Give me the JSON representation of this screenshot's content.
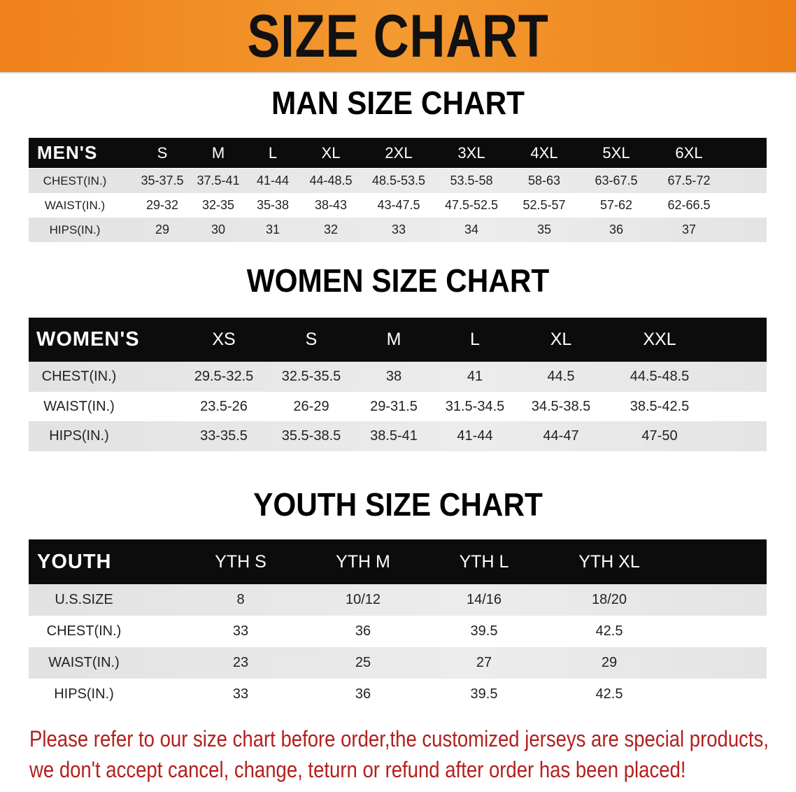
{
  "banner": {
    "title": "SIZE CHART",
    "color": "#f08a22"
  },
  "men": {
    "title": "MAN SIZE CHART",
    "header": [
      "MEN'S",
      "S",
      "M",
      "L",
      "XL",
      "2XL",
      "3XL",
      "4XL",
      "5XL",
      "6XL"
    ],
    "rows": [
      [
        "CHEST(IN.)",
        "35-37.5",
        "37.5-41",
        "41-44",
        "44-48.5",
        "48.5-53.5",
        "53.5-58",
        "58-63",
        "63-67.5",
        "67.5-72"
      ],
      [
        "WAIST(IN.)",
        "29-32",
        "32-35",
        "35-38",
        "38-43",
        "43-47.5",
        "47.5-52.5",
        "52.5-57",
        "57-62",
        "62-66.5"
      ],
      [
        "HIPS(IN.)",
        "29",
        "30",
        "31",
        "32",
        "33",
        "34",
        "35",
        "36",
        "37"
      ]
    ]
  },
  "women": {
    "title": "WOMEN SIZE CHART",
    "header": [
      "WOMEN'S",
      "XS",
      "S",
      "M",
      "L",
      "XL",
      "XXL"
    ],
    "rows": [
      [
        "CHEST(IN.)",
        "29.5-32.5",
        "32.5-35.5",
        "38",
        "41",
        "44.5",
        "44.5-48.5"
      ],
      [
        "WAIST(IN.)",
        "23.5-26",
        "26-29",
        "29-31.5",
        "31.5-34.5",
        "34.5-38.5",
        "38.5-42.5"
      ],
      [
        "HIPS(IN.)",
        "33-35.5",
        "35.5-38.5",
        "38.5-41",
        "41-44",
        "44-47",
        "47-50"
      ]
    ]
  },
  "youth": {
    "title": "YOUTH SIZE CHART",
    "header": [
      "YOUTH",
      "YTH S",
      "YTH M",
      "YTH L",
      "YTH XL"
    ],
    "rows": [
      [
        "U.S.SIZE",
        "8",
        "10/12",
        "14/16",
        "18/20"
      ],
      [
        "CHEST(IN.)",
        "33",
        "36",
        "39.5",
        "42.5"
      ],
      [
        "WAIST(IN.)",
        "23",
        "25",
        "27",
        "29"
      ],
      [
        "HIPS(IN.)",
        "33",
        "36",
        "39.5",
        "42.5"
      ]
    ]
  },
  "note": {
    "line1": "Please refer to our size chart before order,the customized jerseys are special products,",
    "line2": "we don't accept cancel, change, teturn or refund after order has been placed!",
    "color": "#b3201e"
  }
}
